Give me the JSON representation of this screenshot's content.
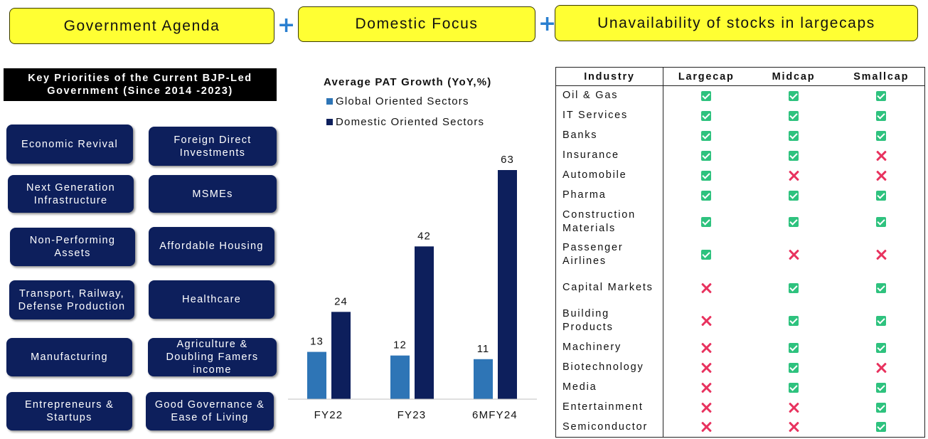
{
  "banner": {
    "items": [
      "Government Agenda",
      "Domestic Focus",
      "Unavailability of stocks in largecaps"
    ],
    "plus": "+"
  },
  "priorities": {
    "title": "Key Priorities of the Current BJP-Led Government (Since 2014 -2023)",
    "items": [
      "Economic Revival",
      "Foreign Direct Investments",
      "Next Generation Infrastructure",
      "MSMEs",
      "Non-Performing Assets",
      "Affordable Housing",
      "Transport, Railway, Defense Production",
      "Healthcare",
      "Manufacturing",
      "Agriculture & Doubling Famers income",
      "Entrepreneurs & Startups",
      "Good Governance & Ease of Living"
    ]
  },
  "chart_data": {
    "type": "bar",
    "title": "Average PAT Growth (YoY,%)",
    "categories": [
      "FY22",
      "FY23",
      "6MFY24"
    ],
    "series": [
      {
        "name": "Global Oriented Sectors",
        "values": [
          13,
          12,
          11
        ],
        "color": "#2e75b6"
      },
      {
        "name": "Domestic Oriented Sectors",
        "values": [
          24,
          42,
          63
        ],
        "color": "#0d1f5c"
      }
    ],
    "ylim": [
      0,
      63
    ],
    "grid": false,
    "legend": "top-left",
    "data_labels": true
  },
  "table": {
    "headers": [
      "Industry",
      "Largecap",
      "Midcap",
      "Smallcap"
    ],
    "rows": [
      {
        "industry": "Oil & Gas",
        "marks": [
          "check",
          "check",
          "check"
        ]
      },
      {
        "industry": "IT Services",
        "marks": [
          "check",
          "check",
          "check"
        ]
      },
      {
        "industry": "Banks",
        "marks": [
          "check",
          "check",
          "check"
        ]
      },
      {
        "industry": "Insurance",
        "marks": [
          "check",
          "check",
          "cross"
        ]
      },
      {
        "industry": "Automobile",
        "marks": [
          "check",
          "cross",
          "cross"
        ]
      },
      {
        "industry": "Pharma",
        "marks": [
          "check",
          "check",
          "check"
        ]
      },
      {
        "industry": "Construction Materials",
        "marks": [
          "check",
          "check",
          "check"
        ]
      },
      {
        "industry": "Passenger Airlines",
        "marks": [
          "check",
          "cross",
          "cross"
        ]
      },
      {
        "industry": "Capital Markets",
        "marks": [
          "cross",
          "check",
          "check"
        ]
      },
      {
        "industry": "Building Products",
        "marks": [
          "cross",
          "check",
          "check"
        ]
      },
      {
        "industry": "Machinery",
        "marks": [
          "cross",
          "check",
          "check"
        ]
      },
      {
        "industry": "Biotechnology",
        "marks": [
          "cross",
          "check",
          "cross"
        ]
      },
      {
        "industry": "Media",
        "marks": [
          "cross",
          "check",
          "check"
        ]
      },
      {
        "industry": "Entertainment",
        "marks": [
          "cross",
          "cross",
          "check"
        ]
      },
      {
        "industry": "Semiconductor",
        "marks": [
          "cross",
          "cross",
          "check"
        ]
      }
    ]
  }
}
